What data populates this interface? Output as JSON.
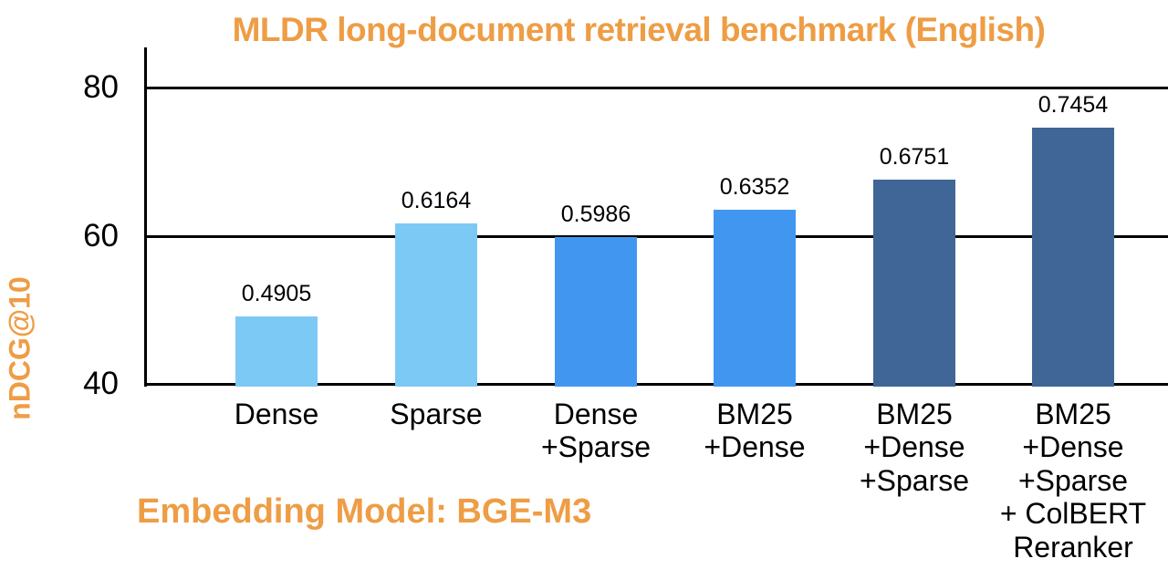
{
  "chart_data": {
    "type": "bar",
    "title": "MLDR long-document retrieval benchmark (English)",
    "ylabel": "nDCG@10",
    "xlabel": "",
    "annotation": "Embedding Model: BGE-M3",
    "categories": [
      "Dense",
      "Sparse",
      "Dense\n+Sparse",
      "BM25\n+Dense",
      "BM25\n+Dense\n+Sparse",
      "BM25\n+Dense\n+Sparse\n+ ColBERT\nReranker"
    ],
    "values": [
      0.4905,
      0.6164,
      0.5986,
      0.6352,
      0.6751,
      0.7454
    ],
    "value_labels": [
      "0.4905",
      "0.6164",
      "0.5986",
      "0.6352",
      "0.6751",
      "0.7454"
    ],
    "value_axis_scale_note": "y axis shows values multiplied by 100",
    "yticks": [
      40,
      60,
      80
    ],
    "ylim": [
      40,
      85.5
    ],
    "grid": "horizontal",
    "legend": "none",
    "bar_colors": [
      "#7DC9F6",
      "#7DC9F6",
      "#4197F0",
      "#4197F0",
      "#3F6697",
      "#3F6697"
    ]
  },
  "colors": {
    "accent_orange": "#EE9D45",
    "bar_light_blue": "#7DC9F6",
    "bar_azure_blue": "#4197F0",
    "bar_steel_blue": "#3F6697",
    "axis_black": "#000000",
    "background": "#FFFFFF"
  }
}
